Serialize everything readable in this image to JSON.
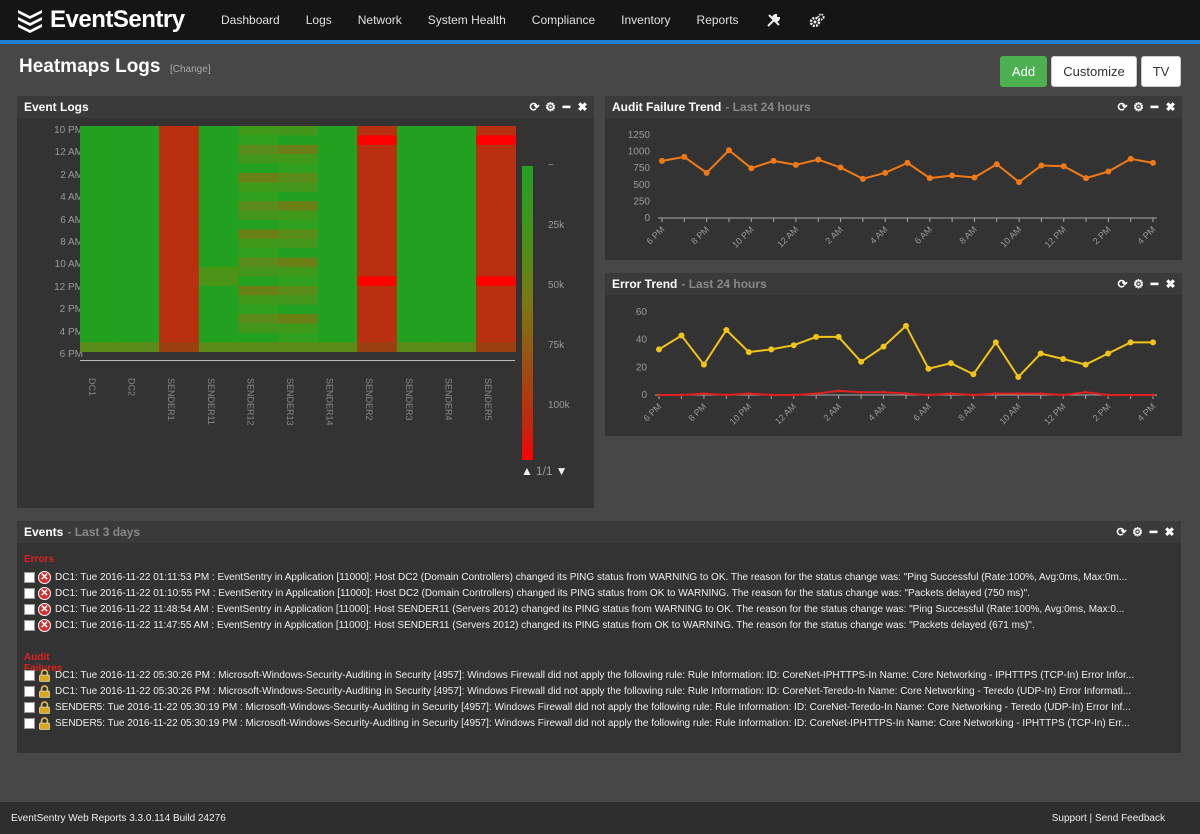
{
  "brand": {
    "name": "EventSentry"
  },
  "nav": {
    "items": [
      "Dashboard",
      "Logs",
      "Network",
      "System Health",
      "Compliance",
      "Inventory",
      "Reports"
    ],
    "icons": [
      "tools-icon",
      "gears-icon"
    ]
  },
  "page": {
    "title": "Heatmaps Logs",
    "change": "[Change]"
  },
  "buttons": {
    "add": "Add",
    "customize": "Customize",
    "tv": "TV"
  },
  "event_logs": {
    "title": "Event Logs",
    "y_labels": [
      "10 PM",
      "12 AM",
      "2 AM",
      "4 AM",
      "6 AM",
      "8 AM",
      "10 AM",
      "12 PM",
      "2 PM",
      "4 PM",
      "6 PM"
    ],
    "x_labels": [
      "DC1",
      "DC2",
      "SENDER1",
      "SENDER11",
      "SENDER12",
      "SENDER13",
      "SENDER14",
      "SENDER2",
      "SENDER3",
      "SENDER4",
      "SENDER5"
    ],
    "legend_labels": [
      "~",
      "25k",
      "50k",
      "75k",
      "100k"
    ],
    "pager": "1/1",
    "colors": {
      "green": "#22a01f",
      "red": "#b83010",
      "bright_red": "#ff0000"
    }
  },
  "audit_trend": {
    "title": "Audit Failure Trend",
    "subtitle": "- Last 24 hours",
    "y_ticks": [
      "1250",
      "1000",
      "750",
      "500",
      "250",
      "0"
    ],
    "x_ticks": [
      "6 PM",
      "8 PM",
      "10 PM",
      "12 AM",
      "2 AM",
      "4 AM",
      "6 AM",
      "8 AM",
      "10 AM",
      "12 PM",
      "2 PM",
      "4 PM"
    ],
    "values": [
      860,
      920,
      680,
      1020,
      750,
      860,
      800,
      880,
      760,
      590,
      680,
      830,
      600,
      640,
      610,
      810,
      540,
      790,
      780,
      600,
      700,
      890,
      830
    ],
    "color": "#f07a17"
  },
  "error_trend": {
    "title": "Error Trend",
    "subtitle": "- Last 24 hours",
    "y_ticks": [
      "60",
      "40",
      "20",
      "0"
    ],
    "x_ticks": [
      "6 PM",
      "8 PM",
      "10 PM",
      "12 AM",
      "2 AM",
      "4 AM",
      "6 AM",
      "8 AM",
      "10 AM",
      "12 PM",
      "2 PM",
      "4 PM"
    ],
    "values": [
      33,
      43,
      22,
      47,
      31,
      33,
      36,
      42,
      42,
      24,
      35,
      50,
      19,
      23,
      15,
      38,
      13,
      30,
      26,
      22,
      30,
      38,
      38
    ],
    "values_low": [
      0,
      0,
      1,
      0,
      1,
      0,
      0,
      1,
      3,
      2,
      2,
      1,
      0,
      1,
      0,
      1,
      1,
      1,
      0,
      2,
      0,
      0,
      0
    ],
    "color": "#f0c419",
    "color_low": "#e02020"
  },
  "events": {
    "title": "Events",
    "subtitle": "- Last 3 days",
    "errors_label": "Errors",
    "errors": [
      "DC1: Tue 2016-11-22 01:11:53 PM : EventSentry in Application [11000]: Host DC2 (Domain Controllers) changed its PING status from WARNING to OK. The reason for the status change was: \"Ping Successful (Rate:100%, Avg:0ms, Max:0m...",
      "DC1: Tue 2016-11-22 01:10:55 PM : EventSentry in Application [11000]: Host DC2 (Domain Controllers) changed its PING status from OK to WARNING. The reason for the status change was: \"Packets delayed (750 ms)\".",
      "DC1: Tue 2016-11-22 11:48:54 AM : EventSentry in Application [11000]: Host SENDER11 (Servers 2012) changed its PING status from WARNING to OK. The reason for the status change was: \"Ping Successful (Rate:100%, Avg:0ms, Max:0...",
      "DC1: Tue 2016-11-22 11:47:55 AM : EventSentry in Application [11000]: Host SENDER11 (Servers 2012) changed its PING status from OK to WARNING. The reason for the status change was: \"Packets delayed (671 ms)\"."
    ],
    "audit_label": "Audit Failures",
    "audit": [
      "DC1: Tue 2016-11-22 05:30:26 PM : Microsoft-Windows-Security-Auditing in Security [4957]: Windows Firewall did not apply the following rule: Rule Information: ID: CoreNet-IPHTTPS-In Name: Core Networking - IPHTTPS (TCP-In) Error Infor...",
      "DC1: Tue 2016-11-22 05:30:26 PM : Microsoft-Windows-Security-Auditing in Security [4957]: Windows Firewall did not apply the following rule: Rule Information: ID: CoreNet-Teredo-In Name: Core Networking - Teredo (UDP-In) Error Informati...",
      "SENDER5: Tue 2016-11-22 05:30:19 PM : Microsoft-Windows-Security-Auditing in Security [4957]: Windows Firewall did not apply the following rule: Rule Information: ID: CoreNet-Teredo-In Name: Core Networking - Teredo (UDP-In) Error Inf...",
      "SENDER5: Tue 2016-11-22 05:30:19 PM : Microsoft-Windows-Security-Auditing in Security [4957]: Windows Firewall did not apply the following rule: Rule Information: ID: CoreNet-IPHTTPS-In Name: Core Networking - IPHTTPS (TCP-In) Err..."
    ]
  },
  "footer": {
    "version": "EventSentry Web Reports 3.3.0.114 Build 24276",
    "support": "Support",
    "sep": "|",
    "feedback": "Send Feedback"
  }
}
